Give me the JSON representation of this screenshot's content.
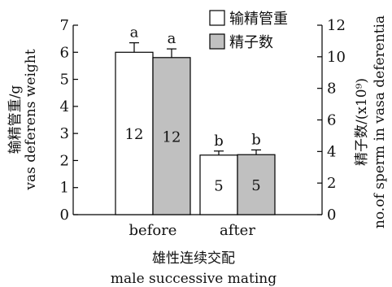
{
  "chart_data": {
    "type": "bar",
    "categories": [
      "before",
      "after"
    ],
    "series": [
      {
        "name": "输精管重",
        "axis": "left",
        "values": [
          6.0,
          2.2
        ],
        "errors": [
          0.35,
          0.15
        ],
        "n": [
          "12",
          "5"
        ],
        "letters": [
          "a",
          "b"
        ],
        "fill": "#ffffff"
      },
      {
        "name": "精子数",
        "axis": "right",
        "values": [
          9.95,
          3.8
        ],
        "errors": [
          0.55,
          0.3
        ],
        "n": [
          "12",
          "5"
        ],
        "letters": [
          "a",
          "b"
        ],
        "fill": "#c0c0c0"
      }
    ],
    "left_axis": {
      "label_zh": "输精管重/g",
      "label_en": "vas deferens weight",
      "ylim": [
        0,
        7
      ],
      "ticks": [
        "0",
        "1",
        "2",
        "3",
        "4",
        "5",
        "6",
        "7"
      ]
    },
    "right_axis": {
      "label_zh": "精子数/(x10⁹)",
      "label_en": "no.of sperm in vasa deferentia",
      "ylim": [
        0,
        12
      ],
      "ticks": [
        "0",
        "2",
        "4",
        "6",
        "8",
        "10",
        "12"
      ]
    },
    "x_axis": {
      "label_zh": "雄性连续交配",
      "label_en": "male successive mating"
    },
    "grid": false,
    "legend_position": "top-right"
  }
}
